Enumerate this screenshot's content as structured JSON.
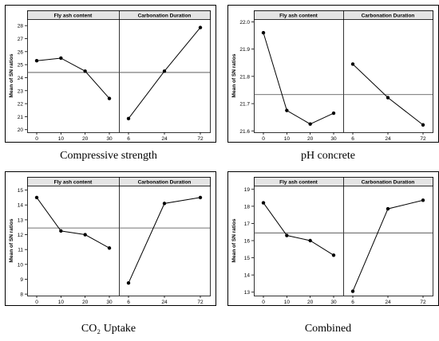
{
  "chart_data": [
    {
      "type": "line",
      "caption": "Compressive strength",
      "ylabel": "Mean of SN ratios",
      "panels": [
        {
          "title": "Fly ash content",
          "categories": [
            "0",
            "10",
            "20",
            "30"
          ],
          "values": [
            25.3,
            25.5,
            24.5,
            22.4
          ]
        },
        {
          "title": "Carbonation Duration",
          "categories": [
            "6",
            "24",
            "72"
          ],
          "values": [
            20.85,
            24.5,
            27.85
          ]
        }
      ],
      "yticks": [
        20,
        21,
        22,
        23,
        24,
        25,
        26,
        27,
        28
      ],
      "ylim": [
        19.8,
        28.5
      ],
      "refline": 24.4
    },
    {
      "type": "line",
      "caption": "pH concrete",
      "ylabel": "Mean of SN ratios",
      "panels": [
        {
          "title": "Fly ash content",
          "categories": [
            "0",
            "10",
            "20",
            "30"
          ],
          "values": [
            21.96,
            21.675,
            21.625,
            21.665
          ]
        },
        {
          "title": "Carbonation Duration",
          "categories": [
            "6",
            "24",
            "72"
          ],
          "values": [
            21.845,
            21.722,
            21.622
          ]
        }
      ],
      "yticks": [
        21.6,
        21.7,
        21.8,
        21.9,
        22.0
      ],
      "ytick_labels": [
        "21.6",
        "21.7",
        "21.8",
        "21.9",
        "22.0"
      ],
      "ylim": [
        21.595,
        22.01
      ],
      "refline": 21.733
    },
    {
      "type": "line",
      "caption": "CO₂ Uptake",
      "ylabel": "Mean of SN ratios",
      "panels": [
        {
          "title": "Fly ash content",
          "categories": [
            "0",
            "10",
            "20",
            "30"
          ],
          "values": [
            14.5,
            12.25,
            12.0,
            11.1
          ]
        },
        {
          "title": "Carbonation Duration",
          "categories": [
            "6",
            "24",
            "72"
          ],
          "values": [
            8.75,
            14.1,
            14.5
          ]
        }
      ],
      "yticks": [
        8,
        9,
        10,
        11,
        12,
        13,
        14,
        15
      ],
      "ylim": [
        7.9,
        15.3
      ],
      "refline": 12.45
    },
    {
      "type": "line",
      "caption": "Combined",
      "ylabel": "Mean of SN ratios",
      "panels": [
        {
          "title": "Fly ash content",
          "categories": [
            "0",
            "10",
            "20",
            "30"
          ],
          "values": [
            18.2,
            16.3,
            16.0,
            15.15
          ]
        },
        {
          "title": "Carbonation Duration",
          "categories": [
            "6",
            "24",
            "72"
          ],
          "values": [
            13.05,
            17.85,
            18.35
          ]
        }
      ],
      "yticks": [
        13,
        14,
        15,
        16,
        17,
        18,
        19
      ],
      "ylim": [
        12.8,
        19.2
      ],
      "refline": 16.45
    }
  ]
}
